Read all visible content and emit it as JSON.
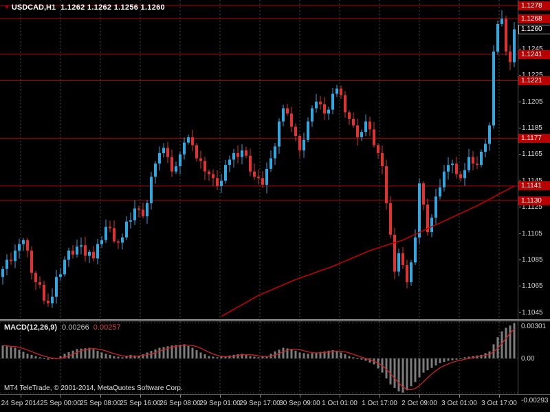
{
  "header": {
    "symbol": "USDCAD,H1",
    "ohlc": "1.1262 1.1262 1.1256 1.1260"
  },
  "icons": {
    "symbol_marker": "▼"
  },
  "macd": {
    "title": "MACD(12,26,9)",
    "value_main": "0.00266",
    "value_signal": "0.00257"
  },
  "footer": {
    "credits": "MT4 TeleTrade, © 2001-2014, MetaQuotes Software Corp."
  },
  "colors": {
    "background": "#000000",
    "bull": "#31a8e0",
    "bear": "#e03232",
    "level_line": "#b80000",
    "ma_line": "#c00000",
    "grid": "#4a4a4a",
    "hist": "#7d7d7d",
    "signal": "#cc2222",
    "axis_text": "#d8d8d8",
    "badge_bg": "#b80000",
    "current_badge_bg": "#000000"
  },
  "chart_data": {
    "type": "candlestick",
    "title": "USDCAD,H1",
    "main": {
      "symbol": "USDCAD",
      "timeframe": "H1",
      "display_ohlc": {
        "open": 1.1262,
        "high": 1.1262,
        "low": 1.1256,
        "close": 1.126
      },
      "first_open": 1.1072,
      "closes": [
        1.1078,
        1.1085,
        1.1084,
        1.1092,
        1.1097,
        1.11,
        1.1092,
        1.1075,
        1.1068,
        1.1066,
        1.1054,
        1.1052,
        1.1057,
        1.1072,
        1.1074,
        1.1085,
        1.1092,
        1.1089,
        1.1095,
        1.1096,
        1.1088,
        1.1091,
        1.1086,
        1.1097,
        1.11,
        1.111,
        1.1109,
        1.1099,
        1.1098,
        1.1102,
        1.1114,
        1.1115,
        1.1124,
        1.1123,
        1.1118,
        1.1128,
        1.1148,
        1.1158,
        1.1166,
        1.117,
        1.1163,
        1.1152,
        1.1156,
        1.1165,
        1.1174,
        1.1178,
        1.1172,
        1.1162,
        1.116,
        1.1152,
        1.115,
        1.1147,
        1.1141,
        1.1145,
        1.1157,
        1.1161,
        1.1166,
        1.1163,
        1.1168,
        1.1164,
        1.1152,
        1.1148,
        1.1147,
        1.1142,
        1.1154,
        1.1162,
        1.1171,
        1.119,
        1.12,
        1.1196,
        1.1186,
        1.1179,
        1.1168,
        1.1176,
        1.119,
        1.12,
        1.1205,
        1.1203,
        1.1196,
        1.1199,
        1.1211,
        1.1215,
        1.121,
        1.1197,
        1.1192,
        1.1187,
        1.1178,
        1.1182,
        1.119,
        1.1184,
        1.1172,
        1.1166,
        1.1156,
        1.1128,
        1.1104,
        1.1076,
        1.109,
        1.1081,
        1.1068,
        1.1083,
        1.1102,
        1.1143,
        1.1127,
        1.1106,
        1.1117,
        1.1133,
        1.114,
        1.1152,
        1.1157,
        1.1158,
        1.115,
        1.1147,
        1.1153,
        1.1163,
        1.1158,
        1.1157,
        1.1167,
        1.1173,
        1.1187,
        1.1243,
        1.1264,
        1.1268,
        1.1243,
        1.1235,
        1.126
      ],
      "ma_waypoints": [
        [
          53,
          1.1042
        ],
        [
          62,
          1.1058
        ],
        [
          71,
          1.107
        ],
        [
          80,
          1.108
        ],
        [
          89,
          1.1092
        ],
        [
          97,
          1.11
        ],
        [
          106,
          1.1113
        ],
        [
          115,
          1.1126
        ],
        [
          124,
          1.1141
        ]
      ],
      "levels": [
        1.1278,
        1.1268,
        1.1241,
        1.1221,
        1.1177,
        1.1141,
        1.113
      ],
      "current_price": 1.126,
      "y_axis_ticks": [
        1.1245,
        1.1225,
        1.1205,
        1.1185,
        1.1165,
        1.1145,
        1.1125,
        1.1105,
        1.1085,
        1.1065,
        1.1045
      ],
      "ylim": [
        1.1041,
        1.1282
      ]
    },
    "macd": {
      "params": "12,26,9",
      "last_main": 0.00266,
      "last_signal": 0.00257,
      "scale_labels": [
        [
          0.00301,
          "0.00301"
        ],
        [
          0,
          "0.00"
        ],
        [
          -0.00293,
          "-0.00293"
        ]
      ],
      "hist_waypoints": [
        [
          0,
          0.0011
        ],
        [
          3,
          0.0009
        ],
        [
          6,
          0.0004
        ],
        [
          9,
          0.0001
        ],
        [
          11,
          -0.0001
        ],
        [
          13,
          0.0
        ],
        [
          15,
          0.0004
        ],
        [
          18,
          0.0008
        ],
        [
          21,
          0.0009
        ],
        [
          24,
          0.0005
        ],
        [
          27,
          0.0002
        ],
        [
          29,
          0.0001
        ],
        [
          31,
          0.0003
        ],
        [
          33,
          0.0002
        ],
        [
          35,
          0.0005
        ],
        [
          38,
          0.0009
        ],
        [
          41,
          0.0011
        ],
        [
          44,
          0.0012
        ],
        [
          46,
          0.0009
        ],
        [
          48,
          0.0005
        ],
        [
          50,
          0.0002
        ],
        [
          52,
          0.0001
        ],
        [
          54,
          0.0002
        ],
        [
          56,
          0.0003
        ],
        [
          58,
          0.0004
        ],
        [
          60,
          0.0002
        ],
        [
          62,
          0.0001
        ],
        [
          64,
          0.0002
        ],
        [
          66,
          0.0006
        ],
        [
          68,
          0.0009
        ],
        [
          70,
          0.0008
        ],
        [
          72,
          0.0005
        ],
        [
          74,
          0.0004
        ],
        [
          76,
          0.0005
        ],
        [
          78,
          0.0006
        ],
        [
          80,
          0.0007
        ],
        [
          82,
          0.0005
        ],
        [
          84,
          0.0002
        ],
        [
          86,
          0.0
        ],
        [
          88,
          -0.0002
        ],
        [
          90,
          -0.0005
        ],
        [
          92,
          -0.0012
        ],
        [
          94,
          -0.0022
        ],
        [
          96,
          -0.0028
        ],
        [
          97,
          -0.0029
        ],
        [
          98,
          -0.0027
        ],
        [
          100,
          -0.002
        ],
        [
          102,
          -0.0012
        ],
        [
          104,
          -0.0008
        ],
        [
          106,
          -0.0004
        ],
        [
          108,
          -0.0002
        ],
        [
          110,
          -0.0001
        ],
        [
          112,
          0.0001
        ],
        [
          114,
          0.0002
        ],
        [
          116,
          0.0003
        ],
        [
          118,
          0.0006
        ],
        [
          119,
          0.0012
        ],
        [
          120,
          0.0018
        ],
        [
          121,
          0.0023
        ],
        [
          122,
          0.0026
        ],
        [
          123,
          0.0028
        ],
        [
          124,
          0.003
        ]
      ]
    },
    "x_labels": [
      "24 Sep 2014",
      "25 Sep 00:00",
      "25 Sep 08:00",
      "25 Sep 16:00",
      "26 Sep 08:00",
      "29 Sep 01:00",
      "29 Sep 17:00",
      "30 Sep 09:00",
      "1 Oct 01:00",
      "1 Oct 17:00",
      "2 Oct 09:00",
      "3 Oct 01:00",
      "3 Oct 17:00"
    ]
  }
}
